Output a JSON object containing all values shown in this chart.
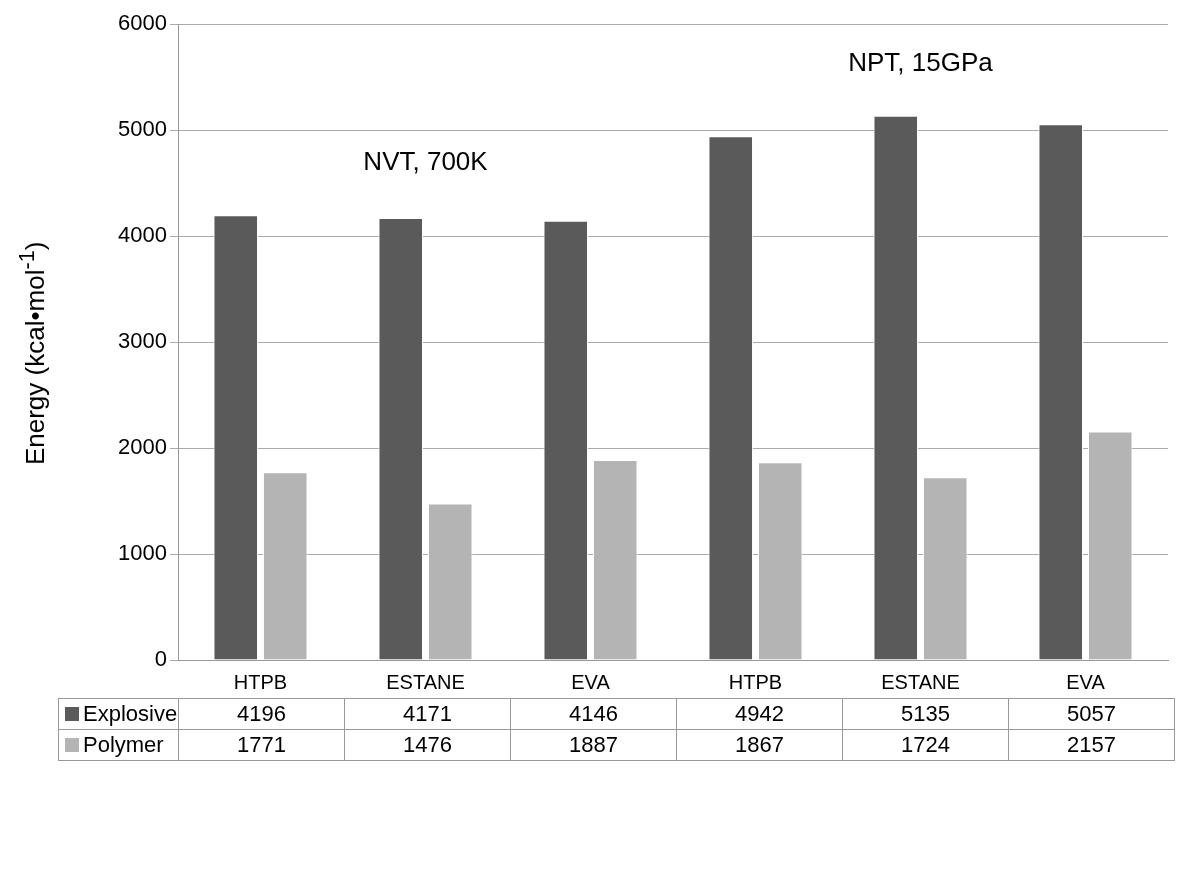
{
  "chart_data": {
    "type": "bar",
    "categories": [
      "HTPB",
      "ESTANE",
      "EVA",
      "HTPB",
      "ESTANE",
      "EVA"
    ],
    "series": [
      {
        "name": "Explosive",
        "color": "#5a5a5a",
        "values": [
          4196,
          4171,
          4146,
          4942,
          5135,
          5057
        ]
      },
      {
        "name": "Polymer",
        "color": "#b4b4b4",
        "values": [
          1771,
          1476,
          1887,
          1867,
          1724,
          2157
        ]
      }
    ],
    "ylabel": "Energy (kcal•mol$^{-1}$)",
    "ylim": [
      0,
      6000
    ],
    "yticks": [
      0,
      1000,
      2000,
      3000,
      4000,
      5000,
      6000
    ],
    "grid": "y",
    "legend": "bottom",
    "data_labels": true,
    "annotations": [
      "NVT, 700K",
      "NPT, 15GPa"
    ]
  }
}
